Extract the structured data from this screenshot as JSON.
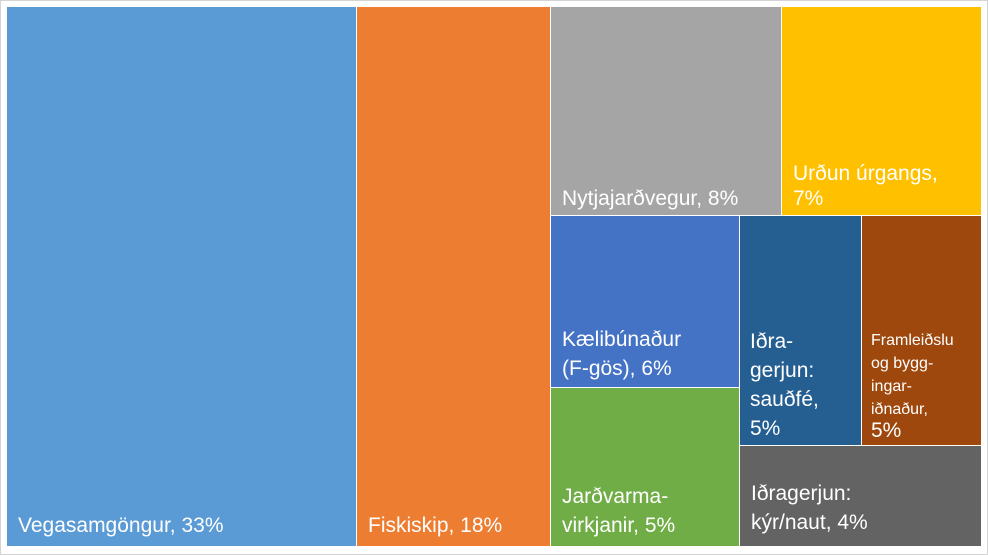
{
  "chart_data": {
    "type": "treemap",
    "title": "",
    "unit": "%",
    "items": [
      {
        "label_lines": [
          "Vegasamgöngur, 33%"
        ],
        "name": "Vegasamgöngur",
        "value": 33,
        "color": "#5b9bd5"
      },
      {
        "label_lines": [
          "Fiskiskip, 18%"
        ],
        "name": "Fiskiskip",
        "value": 18,
        "color": "#ed7d31"
      },
      {
        "label_lines": [
          "Nytjajarðvegur, 8%"
        ],
        "name": "Nytjajarðvegur",
        "value": 8,
        "color": "#a5a5a5"
      },
      {
        "label_lines": [
          "Urðun úrgangs,",
          "7%"
        ],
        "name": "Urðun úrgangs",
        "value": 7,
        "color": "#ffc000"
      },
      {
        "label_lines": [
          "Kælibúnaður",
          "(F-gös), 6%"
        ],
        "name": "Kælibúnaður (F-gös)",
        "value": 6,
        "color": "#4472c4"
      },
      {
        "label_lines": [
          "Iðra-",
          "gerjun:",
          "sauðfé,",
          "5%"
        ],
        "name": "Iðragerjun: sauðfé",
        "value": 5,
        "color": "#255e91"
      },
      {
        "label_lines": [
          "Framleiðslu",
          "og bygg-",
          "ingar-",
          "iðnaður,",
          "5%"
        ],
        "name": "Framleiðslu og byggingariðnaður",
        "value": 5,
        "color": "#9e480e"
      },
      {
        "label_lines": [
          "Jarðvarma-",
          "virkjanir, 5%"
        ],
        "name": "Jarðvarmavirkjanir",
        "value": 5,
        "color": "#70ad47"
      },
      {
        "label_lines": [
          "Iðragerjun:",
          "kýr/naut, 4%"
        ],
        "name": "Iðragerjun: kýr/naut",
        "value": 4,
        "color": "#636363"
      }
    ]
  }
}
